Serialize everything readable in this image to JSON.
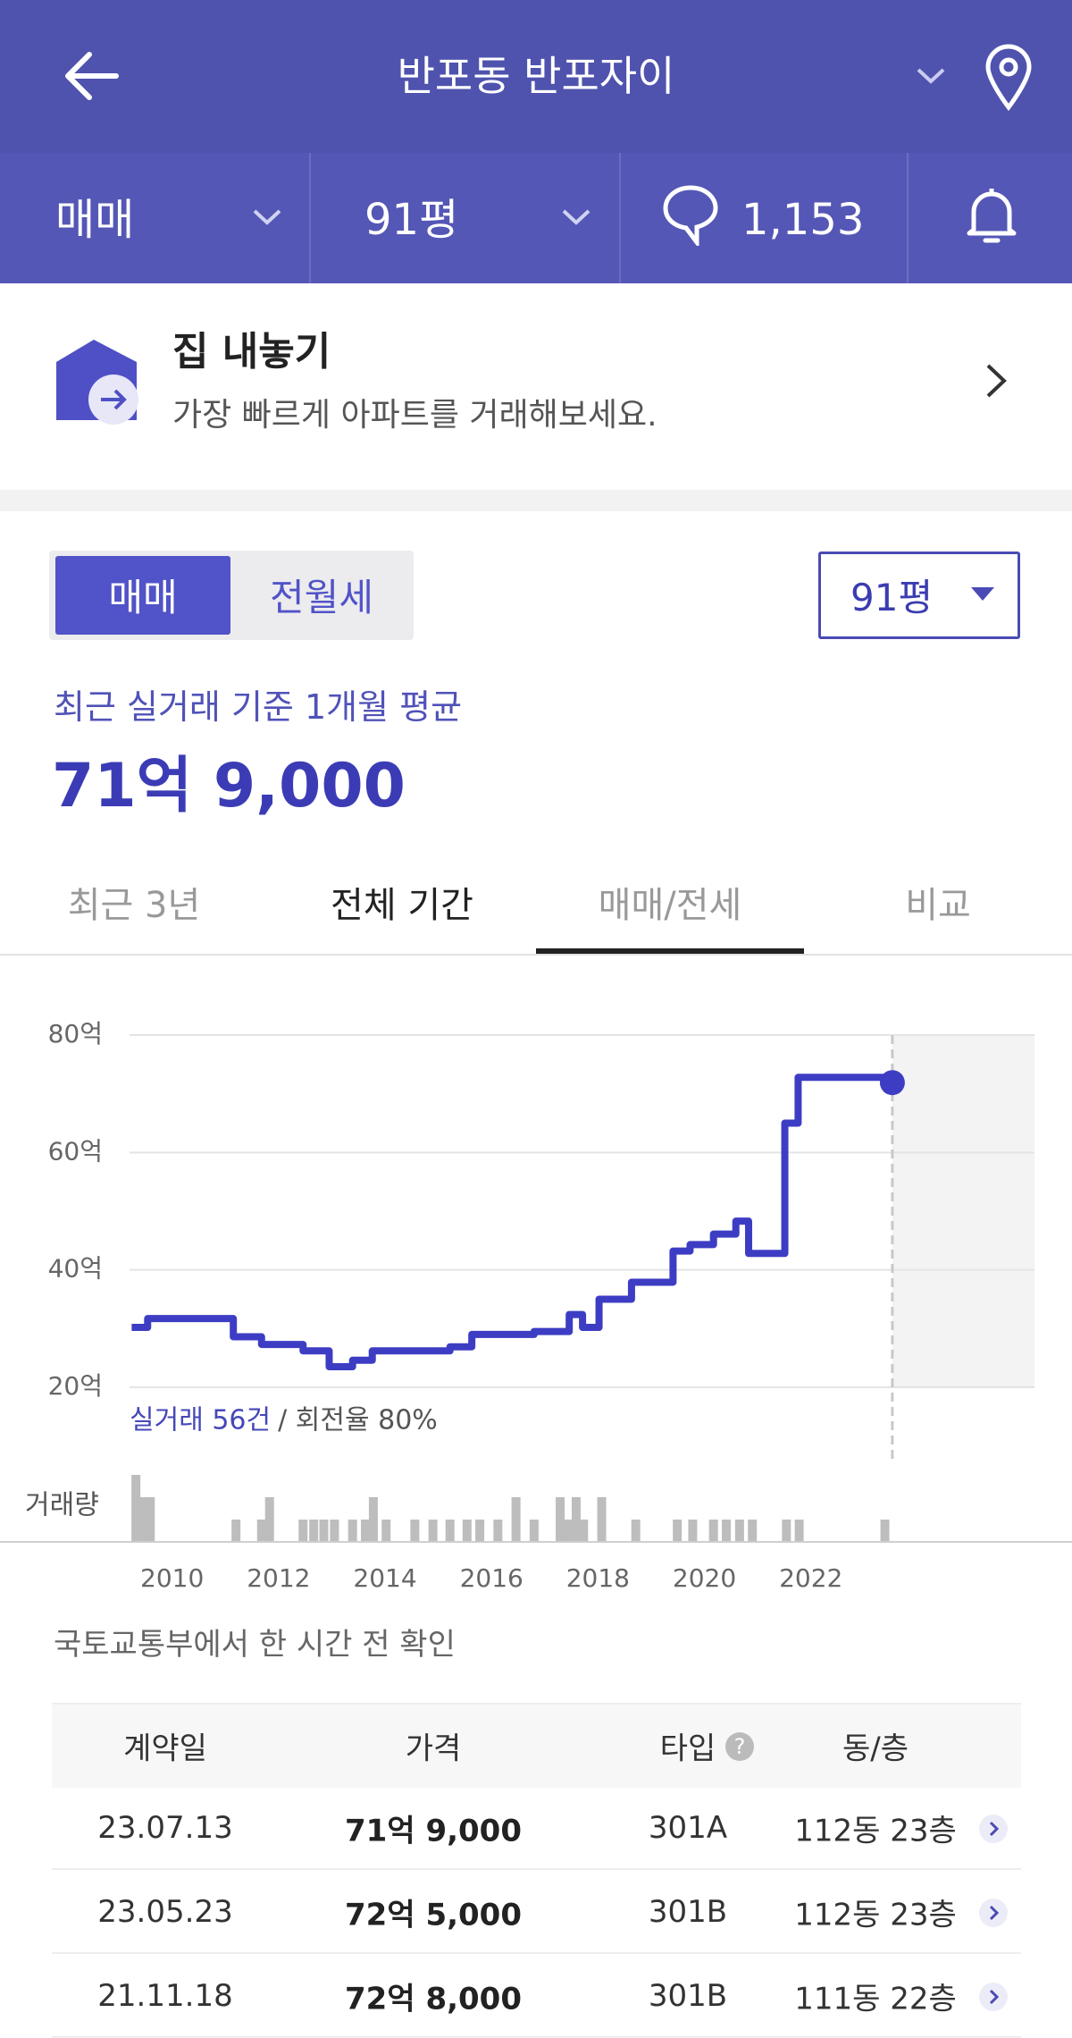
{
  "header": {
    "title": "반포동 반포자이"
  },
  "filters": {
    "deal": "매매",
    "size": "91평",
    "comments": "1,153"
  },
  "listing": {
    "title": "집 내놓기",
    "subtitle": "가장 빠르게 아파트를 거래해보세요."
  },
  "toggle": [
    "매매",
    "전월세"
  ],
  "dropdown": "91평",
  "summary": {
    "label": "최근 실거래 기준 1개월 평균",
    "price": "71억 9,000"
  },
  "tabs": [
    "최근 3년",
    "전체 기간",
    "매매/전세",
    "비교"
  ],
  "selected_tab": 1,
  "chart_data": {
    "type": "line",
    "color": "#3d3dc4",
    "x": [
      2009.24,
      2009.54,
      2009.54,
      2011.15,
      2011.15,
      2011.68,
      2011.68,
      2012.46,
      2012.46,
      2012.95,
      2012.95,
      2013.39,
      2013.39,
      2013.76,
      2013.76,
      2015.22,
      2015.22,
      2015.63,
      2015.63,
      2016.8,
      2016.8,
      2017.46,
      2017.46,
      2017.71,
      2017.71,
      2018.02,
      2018.02,
      2018.63,
      2018.63,
      2019.41,
      2019.41,
      2019.73,
      2019.73,
      2020.17,
      2020.17,
      2020.59,
      2020.59,
      2020.83,
      2020.83,
      2021.51,
      2021.51,
      2021.76,
      2021.76,
      2023.39,
      2023.39,
      2023.53,
      2023.53
    ],
    "values": [
      30.2,
      30.2,
      31.7,
      31.7,
      28.6,
      28.6,
      27.3,
      27.3,
      26.2,
      26.2,
      23.5,
      23.5,
      24.6,
      24.6,
      26.2,
      26.2,
      26.9,
      26.9,
      29.0,
      29.0,
      29.5,
      29.5,
      32.4,
      32.4,
      30.2,
      30.2,
      35.0,
      35.0,
      37.9,
      37.9,
      43.2,
      43.2,
      44.3,
      44.3,
      46.1,
      46.1,
      48.3,
      48.3,
      42.8,
      42.8,
      65.0,
      65.0,
      72.8,
      72.8,
      72.5,
      72.5,
      71.9
    ],
    "xlim": [
      2009.2,
      2026.2
    ],
    "xticks": [
      2010,
      2012,
      2014,
      2016,
      2018,
      2020,
      2022
    ],
    "ylim": [
      20,
      80
    ],
    "yticks": [
      {
        "value": 20,
        "label": "20억"
      },
      {
        "value": 40,
        "label": "40억"
      },
      {
        "value": 60,
        "label": "60억"
      },
      {
        "value": 80,
        "label": "80억"
      }
    ],
    "grid": true,
    "annotation": "실거래 56건",
    "annotation_rate": "/ 회전율 80%",
    "volume": {
      "type": "bar",
      "label": "거래량",
      "color": "#bdbdbd",
      "ylim": [
        0,
        3
      ],
      "x": [
        2009.32,
        2009.44,
        2009.59,
        2011.2,
        2011.68,
        2011.83,
        2012.46,
        2012.66,
        2012.85,
        2013.05,
        2013.39,
        2013.63,
        2013.78,
        2014.02,
        2014.56,
        2014.9,
        2015.22,
        2015.54,
        2015.78,
        2016.12,
        2016.46,
        2016.8,
        2017.29,
        2017.44,
        2017.59,
        2017.73,
        2018.07,
        2018.71,
        2019.49,
        2019.78,
        2020.17,
        2020.41,
        2020.66,
        2020.9,
        2021.54,
        2021.78,
        2023.39
      ],
      "values": [
        3,
        2,
        2,
        1,
        1,
        2,
        1,
        1,
        1,
        1,
        1,
        1,
        2,
        1,
        1,
        1,
        1,
        1,
        1,
        1,
        2,
        1,
        2,
        1,
        2,
        1,
        2,
        1,
        1,
        1,
        1,
        1,
        1,
        1,
        1,
        1,
        1
      ]
    }
  },
  "source_note": "국토교통부에서 한 시간 전 확인",
  "table": {
    "header": [
      "계약일",
      "가격",
      "타입",
      "동/층"
    ],
    "rows": [
      [
        "23.07.13",
        "71억 9,000",
        "301A",
        "112동 23층"
      ],
      [
        "23.05.23",
        "72억 5,000",
        "301B",
        "112동 23층"
      ],
      [
        "21.11.18",
        "72억 8,000",
        "301B",
        "111동 22층"
      ]
    ]
  }
}
